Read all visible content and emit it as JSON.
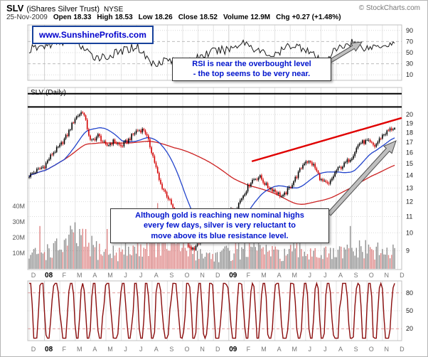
{
  "header": {
    "symbol": "SLV",
    "name": "(iShares Silver Trust)",
    "exchange": "NYSE",
    "date": "25-Nov-2009",
    "fields": [
      {
        "label": "Open",
        "value": "18.33"
      },
      {
        "label": "High",
        "value": "18.53"
      },
      {
        "label": "Low",
        "value": "18.26"
      },
      {
        "label": "Close",
        "value": "18.52"
      },
      {
        "label": "Volume",
        "value": "12.9M"
      },
      {
        "label": "Chg",
        "value": "+0.27 (+1.48%)"
      }
    ],
    "copyright": "© StockCharts.com"
  },
  "watermark": {
    "text": "www.SunshineProfits.com"
  },
  "panels": {
    "main": {
      "label": "SLV (Daily)"
    }
  },
  "annotations": {
    "rsi": {
      "lines": [
        "RSI is near the overbought level",
        "- the top seems to be very near."
      ],
      "arrow": {
        "from": [
          455,
          90
        ],
        "to": [
          508,
          58
        ]
      }
    },
    "price": {
      "lines": [
        "Although gold is reaching new nominal highs",
        "every few days, silver is very reluctant to",
        "move above its blue resistance level."
      ],
      "arrow": {
        "from": [
          462,
          300
        ],
        "to": [
          556,
          197
        ]
      }
    }
  },
  "x_axis": {
    "labels": [
      "D",
      "08",
      "F",
      "M",
      "A",
      "M",
      "J",
      "J",
      "A",
      "S",
      "O",
      "N",
      "D",
      "09",
      "F",
      "M",
      "A",
      "M",
      "J",
      "J",
      "A",
      "S",
      "O",
      "N",
      "D"
    ]
  },
  "chart_data": [
    {
      "name": "rsi-indicator",
      "type": "line",
      "ylim": [
        0,
        100
      ],
      "yticks": [
        90,
        70,
        50,
        30,
        10
      ],
      "x_unit": "months since Dec-2007",
      "x": [
        0,
        1,
        2,
        3,
        4,
        5,
        6,
        7,
        8,
        9,
        10,
        11,
        12,
        13,
        14,
        15,
        16,
        17,
        18,
        19,
        20,
        21,
        22,
        23,
        24
      ],
      "values": [
        55,
        62,
        70,
        74,
        44,
        42,
        52,
        62,
        30,
        38,
        26,
        42,
        52,
        56,
        70,
        52,
        44,
        64,
        58,
        33,
        55,
        70,
        58,
        65,
        67
      ],
      "line_color": "#1a1a1a"
    },
    {
      "name": "price-panel",
      "type": "candlestick",
      "title": "SLV (Daily)",
      "scale": "log",
      "ylim": [
        8.1,
        23.4
      ],
      "yticks": [
        20,
        19,
        18,
        17,
        16,
        15,
        14,
        13,
        12,
        11,
        10,
        9
      ],
      "x_unit": "months since Dec-2007",
      "close_anchors": {
        "x": [
          0,
          0.5,
          1,
          1.5,
          2,
          2.5,
          3,
          3.5,
          4,
          4.5,
          5,
          5.5,
          6,
          6.5,
          7,
          7.5,
          8,
          8.5,
          9,
          9.5,
          10,
          10.5,
          11,
          11.5,
          12,
          12.5,
          13,
          13.5,
          14,
          14.5,
          15,
          15.5,
          16,
          16.5,
          17,
          17.5,
          18,
          18.5,
          19,
          19.5,
          20,
          20.5,
          21,
          21.5,
          22,
          22.5,
          23,
          23.5,
          23.8
        ],
        "values": [
          14.0,
          14.4,
          14.8,
          15.9,
          16.6,
          17.8,
          19.6,
          20.4,
          17.0,
          17.7,
          16.6,
          17.1,
          16.6,
          17.3,
          18.2,
          18.3,
          16.0,
          13.4,
          12.4,
          11.2,
          10.0,
          9.0,
          9.3,
          9.9,
          9.6,
          10.6,
          11.3,
          11.6,
          12.6,
          13.6,
          13.9,
          13.1,
          12.8,
          12.3,
          13.1,
          14.1,
          15.3,
          14.9,
          13.6,
          13.2,
          14.4,
          14.9,
          15.6,
          16.9,
          17.1,
          16.6,
          17.7,
          18.3,
          18.52
        ]
      },
      "volume_anchors": {
        "unit": "millions of shares",
        "x": [
          0,
          1,
          2,
          3,
          4,
          5,
          6,
          7,
          8,
          9,
          10,
          11,
          12,
          13,
          14,
          15,
          16,
          17,
          18,
          19,
          20,
          21,
          22,
          23,
          24
        ],
        "values": [
          8,
          11,
          13,
          20,
          14,
          10,
          10,
          13,
          16,
          15,
          13,
          10,
          8,
          10,
          14,
          12,
          9,
          10,
          11,
          9,
          9,
          11,
          12,
          10,
          10
        ],
        "ytick_values": [
          40,
          30,
          20,
          10
        ],
        "ytick_labels": [
          "40M",
          "30M",
          "20M",
          "10M"
        ]
      },
      "overlays": [
        {
          "name": "50-day moving average",
          "color": "#2244cc"
        },
        {
          "name": "200-day moving average",
          "color": "#cc2222"
        }
      ],
      "trendline": {
        "x1": 14.5,
        "p1": 15.2,
        "x2": 24.35,
        "p2": 19.6,
        "color": "#e00000"
      },
      "resistance_lines": {
        "prices": [
          22.6,
          20.9
        ],
        "color": "#000000"
      },
      "candle_colors": {
        "up": "#000000",
        "down": "#d40000"
      },
      "last": {
        "open": 18.33,
        "high": 18.53,
        "low": 18.26,
        "close": 18.52
      }
    },
    {
      "name": "stochastic-oscillator",
      "type": "line",
      "ylim": [
        0,
        100
      ],
      "yticks": [
        80,
        50,
        20
      ],
      "pattern": {
        "center": 50,
        "amplitude": 62,
        "period_months": 0.85,
        "noise": 26,
        "clip": [
          4,
          96
        ]
      },
      "line_color": "#8a0c0c"
    }
  ]
}
